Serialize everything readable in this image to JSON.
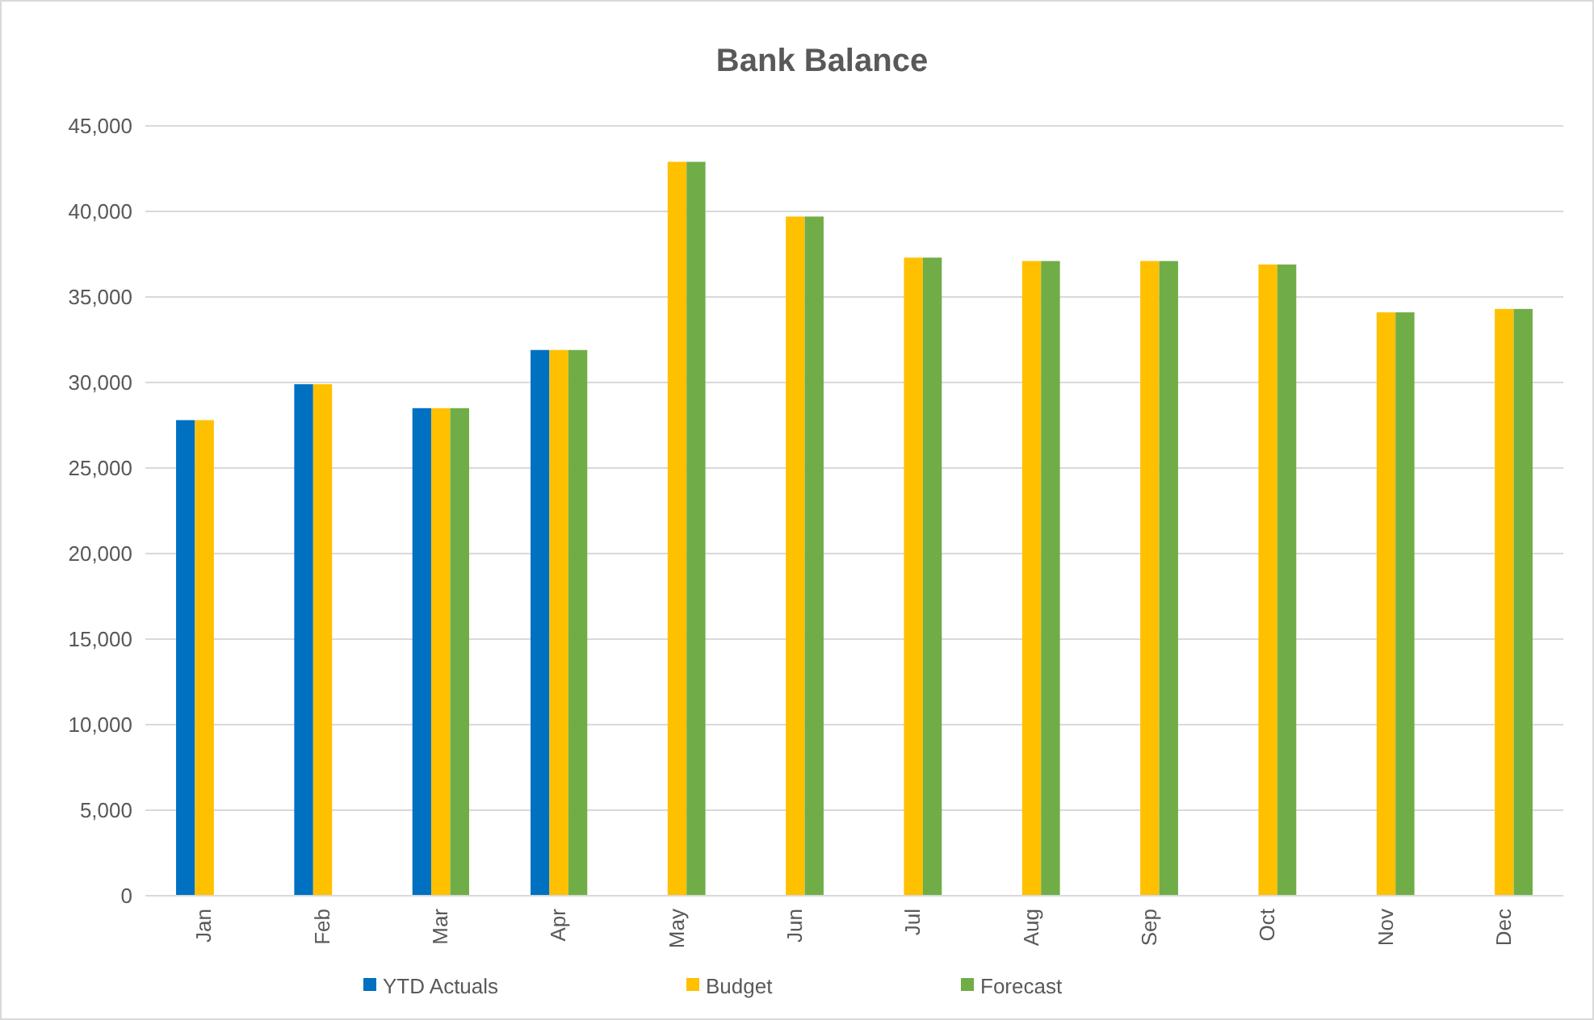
{
  "chart_data": {
    "type": "bar",
    "title": "Bank Balance",
    "categories": [
      "Jan",
      "Feb",
      "Mar",
      "Apr",
      "May",
      "Jun",
      "Jul",
      "Aug",
      "Sep",
      "Oct",
      "Nov",
      "Dec"
    ],
    "series": [
      {
        "name": "YTD Actuals",
        "color": "#0070c0",
        "values": [
          27800,
          29900,
          28500,
          31900,
          null,
          null,
          null,
          null,
          null,
          null,
          null,
          null
        ]
      },
      {
        "name": "Budget",
        "color": "#ffc000",
        "values": [
          27800,
          29900,
          28500,
          31900,
          42900,
          39700,
          37300,
          37100,
          37100,
          36900,
          34100,
          34300
        ]
      },
      {
        "name": "Forecast",
        "color": "#70ad47",
        "values": [
          null,
          null,
          28500,
          31900,
          42900,
          39700,
          37300,
          37100,
          37100,
          36900,
          34100,
          34300
        ]
      }
    ],
    "ylim": [
      0,
      45000
    ],
    "yticks": [
      {
        "value": 0,
        "label": "0"
      },
      {
        "value": 5000,
        "label": "5,000"
      },
      {
        "value": 10000,
        "label": "10,000"
      },
      {
        "value": 15000,
        "label": "15,000"
      },
      {
        "value": 20000,
        "label": "20,000"
      },
      {
        "value": 25000,
        "label": "25,000"
      },
      {
        "value": 30000,
        "label": "30,000"
      },
      {
        "value": 35000,
        "label": "35,000"
      },
      {
        "value": 40000,
        "label": "40,000"
      },
      {
        "value": 45000,
        "label": "45,000"
      }
    ],
    "grid": "y",
    "legend": "bottom"
  }
}
